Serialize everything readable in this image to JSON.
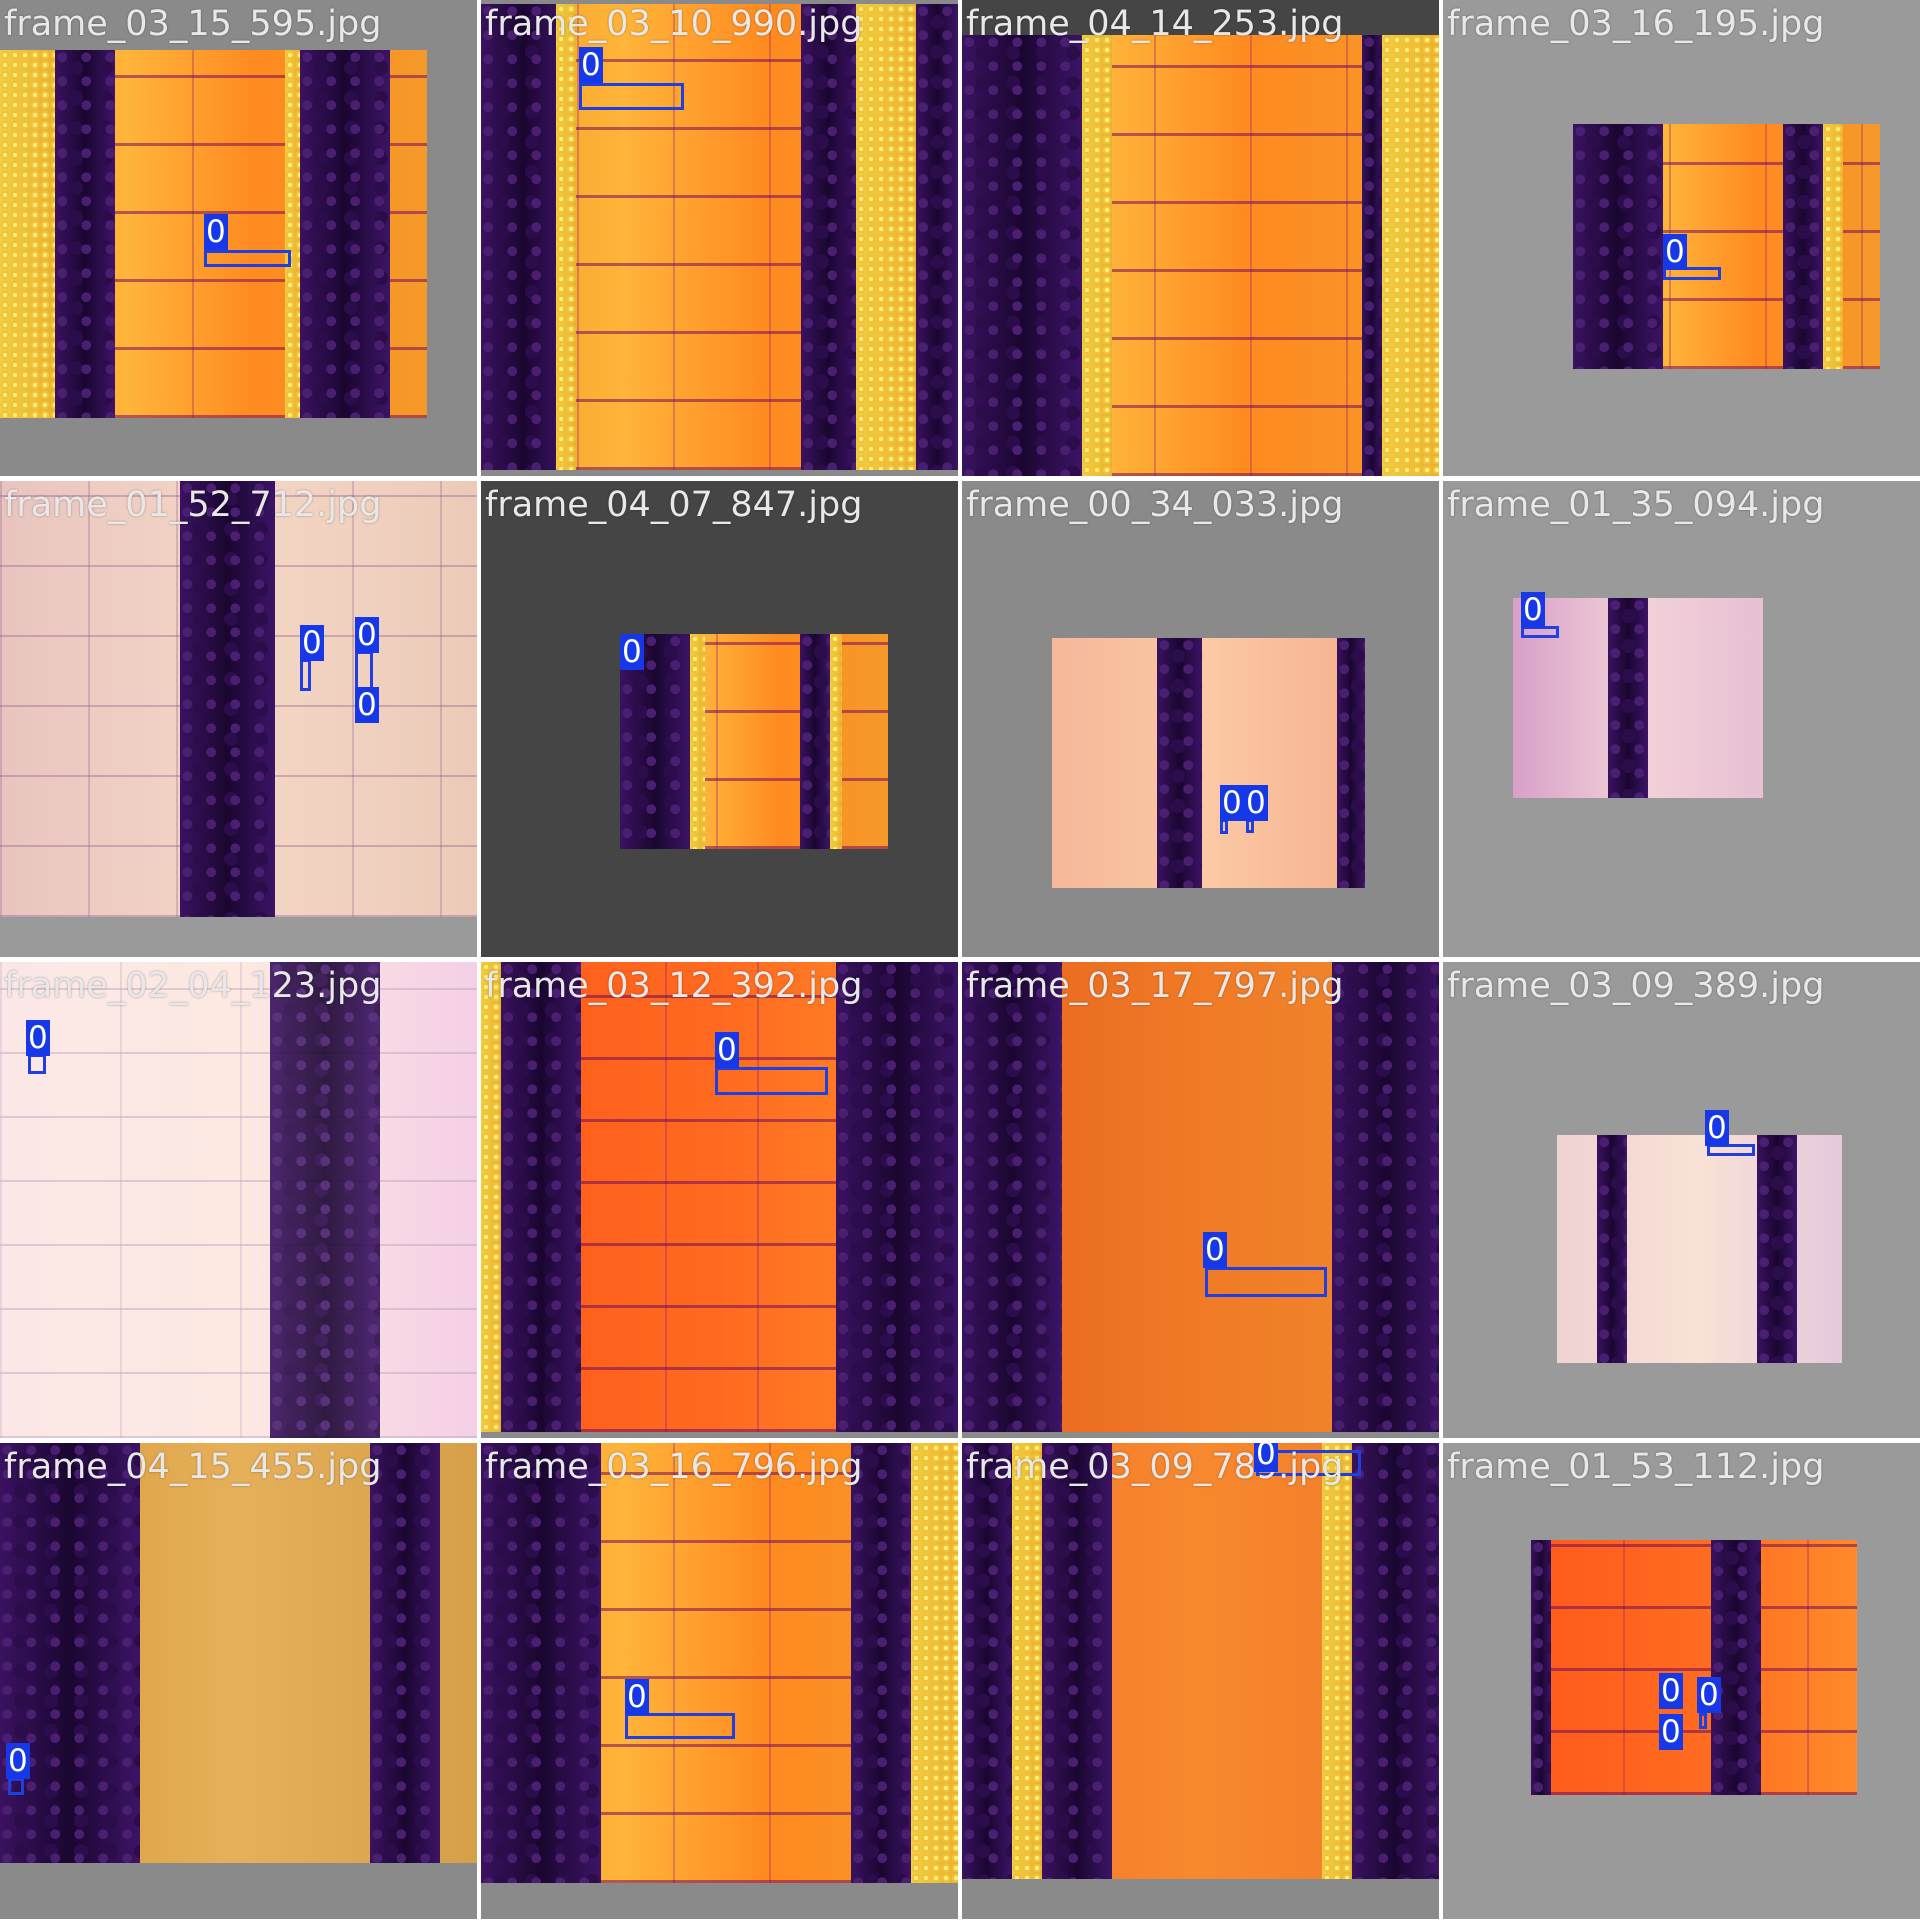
{
  "tiles": [
    {
      "filename": "frame_03_15_595.jpg",
      "labels": [
        "0"
      ]
    },
    {
      "filename": "frame_03_10_990.jpg",
      "labels": [
        "0"
      ]
    },
    {
      "filename": "frame_04_14_253.jpg",
      "labels": []
    },
    {
      "filename": "frame_03_16_195.jpg",
      "labels": [
        "0"
      ]
    },
    {
      "filename": "frame_01_52_712.jpg",
      "labels": [
        "0",
        "0",
        "0"
      ]
    },
    {
      "filename": "frame_04_07_847.jpg",
      "labels": [
        "0"
      ]
    },
    {
      "filename": "frame_00_34_033.jpg",
      "labels": [
        "0",
        "0"
      ]
    },
    {
      "filename": "frame_01_35_094.jpg",
      "labels": [
        "0"
      ]
    },
    {
      "filename": "frame_02_04_123.jpg",
      "labels": [
        "0"
      ]
    },
    {
      "filename": "frame_03_12_392.jpg",
      "labels": [
        "0"
      ]
    },
    {
      "filename": "frame_03_17_797.jpg",
      "labels": [
        "0"
      ]
    },
    {
      "filename": "frame_03_09_389.jpg",
      "labels": [
        "0"
      ]
    },
    {
      "filename": "frame_04_15_455.jpg",
      "labels": [
        "0"
      ]
    },
    {
      "filename": "frame_03_16_796.jpg",
      "labels": [
        "0"
      ]
    },
    {
      "filename": "frame_03_09_789.jpg",
      "labels": [
        "0"
      ]
    },
    {
      "filename": "frame_01_53_112.jpg",
      "labels": [
        "0",
        "0",
        "0"
      ]
    }
  ],
  "colors": {
    "box_border": "#1f3fe0",
    "label_bg": "#1638e6",
    "filename_text": "#e8e8e8"
  }
}
